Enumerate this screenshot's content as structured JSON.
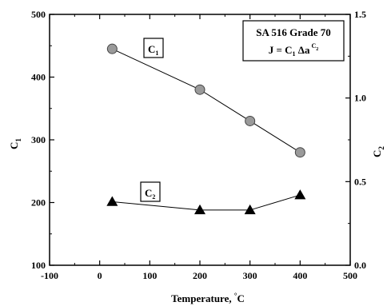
{
  "chart_data": {
    "type": "scatter",
    "xlabel": "Temperature, °C",
    "ylabel_left": "C1",
    "ylabel_right": "C2",
    "xlim": [
      -100,
      500
    ],
    "ylim_left": [
      100,
      500
    ],
    "ylim_right": [
      0.0,
      1.5
    ],
    "x_ticks": [
      "-100",
      "0",
      "100",
      "200",
      "300",
      "400",
      "500"
    ],
    "y_left_ticks": [
      "100",
      "200",
      "300",
      "400",
      "500"
    ],
    "y_right_ticks": [
      "0.0",
      "0.5",
      "1.0",
      "1.5"
    ],
    "grid": false,
    "legend_box": {
      "line1": "SA 516 Grade 70",
      "line2": "J = C1 Δa^C2"
    },
    "series": [
      {
        "label": "C1",
        "axis": "left",
        "marker": "circle",
        "color": "#9a9a9a",
        "x": [
          25,
          200,
          300,
          400
        ],
        "y": [
          445,
          380,
          330,
          280
        ]
      },
      {
        "label": "C2",
        "axis": "right",
        "marker": "triangle",
        "color": "#000000",
        "x": [
          25,
          200,
          300,
          400
        ],
        "y": [
          0.38,
          0.33,
          0.33,
          0.42
        ]
      }
    ]
  }
}
